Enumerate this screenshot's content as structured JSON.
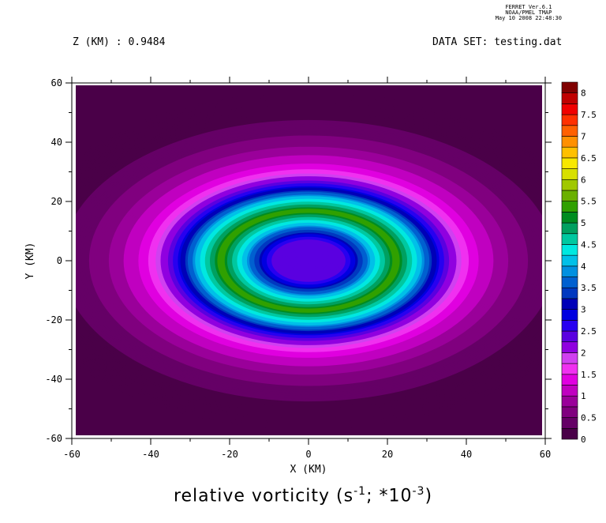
{
  "header": {
    "z_label": "Z (KM) : 0.9484",
    "dataset_label": "DATA SET: testing.dat",
    "stamp": [
      "FERRET  Ver.6.1",
      "NOAA/PMEL TMAP",
      "May 10 2008 22:48:30"
    ]
  },
  "chart_data": {
    "type": "heatmap",
    "title": "relative vorticity (s^-1; *10^-3)",
    "title_parts": {
      "main": "relative vorticity (s",
      "exp1": "-1",
      "mid": "; *10",
      "exp2": "-3",
      "end": ")"
    },
    "xlabel": "X (KM)",
    "ylabel": "Y (KM)",
    "xlim": [
      -60,
      60
    ],
    "ylim": [
      -60,
      60
    ],
    "x_ticks": [
      -60,
      -40,
      -20,
      0,
      20,
      40,
      60
    ],
    "y_ticks": [
      60,
      40,
      20,
      0,
      -20,
      -40,
      -60
    ],
    "x_tick_labels": [
      "-60",
      "-40",
      "-20",
      "0",
      "20",
      "40",
      "60"
    ],
    "y_tick_labels": [
      "60",
      "40",
      "20",
      "0",
      "-20",
      "-40",
      "-60"
    ],
    "colorbar": {
      "levels": [
        0,
        0.25,
        0.5,
        0.75,
        1,
        1.25,
        1.5,
        1.75,
        2,
        2.25,
        2.5,
        2.75,
        3,
        3.25,
        3.5,
        3.75,
        4,
        4.25,
        4.5,
        4.75,
        5,
        5.25,
        5.5,
        5.75,
        6,
        6.25,
        6.5,
        6.75,
        7,
        7.25,
        7.5,
        7.75,
        8
      ],
      "tick_labels": [
        "0",
        "0.5",
        "1",
        "1.5",
        "2",
        "2.5",
        "3",
        "3.5",
        "4",
        "4.5",
        "5",
        "5.5",
        "6",
        "6.5",
        "7",
        "7.5",
        "8"
      ],
      "colors": [
        "#4a0048",
        "#650066",
        "#80007f",
        "#9a009a",
        "#c000c0",
        "#e000e0",
        "#f030f0",
        "#d040f0",
        "#9000e0",
        "#5a00e0",
        "#2800f0",
        "#0000e0",
        "#0000b8",
        "#0038c0",
        "#0060d0",
        "#0090e0",
        "#00c0e8",
        "#00e8e0",
        "#00c8a0",
        "#00a060",
        "#008c20",
        "#30a000",
        "#6ab000",
        "#a0c800",
        "#d8e000",
        "#f8e800",
        "#ffc000",
        "#ff9000",
        "#ff6000",
        "#ff3000",
        "#f00000",
        "#c00000",
        "#800000"
      ]
    },
    "field": {
      "description_of_shape": "concentric rings centered at origin",
      "center": [
        0,
        0
      ],
      "rings": [
        {
          "radius_km": 0,
          "value": 2.25
        },
        {
          "radius_km": 8,
          "value": 2.5
        },
        {
          "radius_km": 13,
          "value": 4.0
        },
        {
          "radius_km": 18,
          "value": 5.4
        },
        {
          "radius_km": 23,
          "value": 4.0
        },
        {
          "radius_km": 28,
          "value": 2.4
        },
        {
          "radius_km": 33,
          "value": 1.4
        },
        {
          "radius_km": 40,
          "value": 0.8
        },
        {
          "radius_km": 47,
          "value": 0.35
        },
        {
          "radius_km": 55,
          "value": 0.1
        },
        {
          "radius_km": 90,
          "value": 0.0
        }
      ],
      "aspect_x": 1.0,
      "aspect_y": 0.76
    }
  }
}
